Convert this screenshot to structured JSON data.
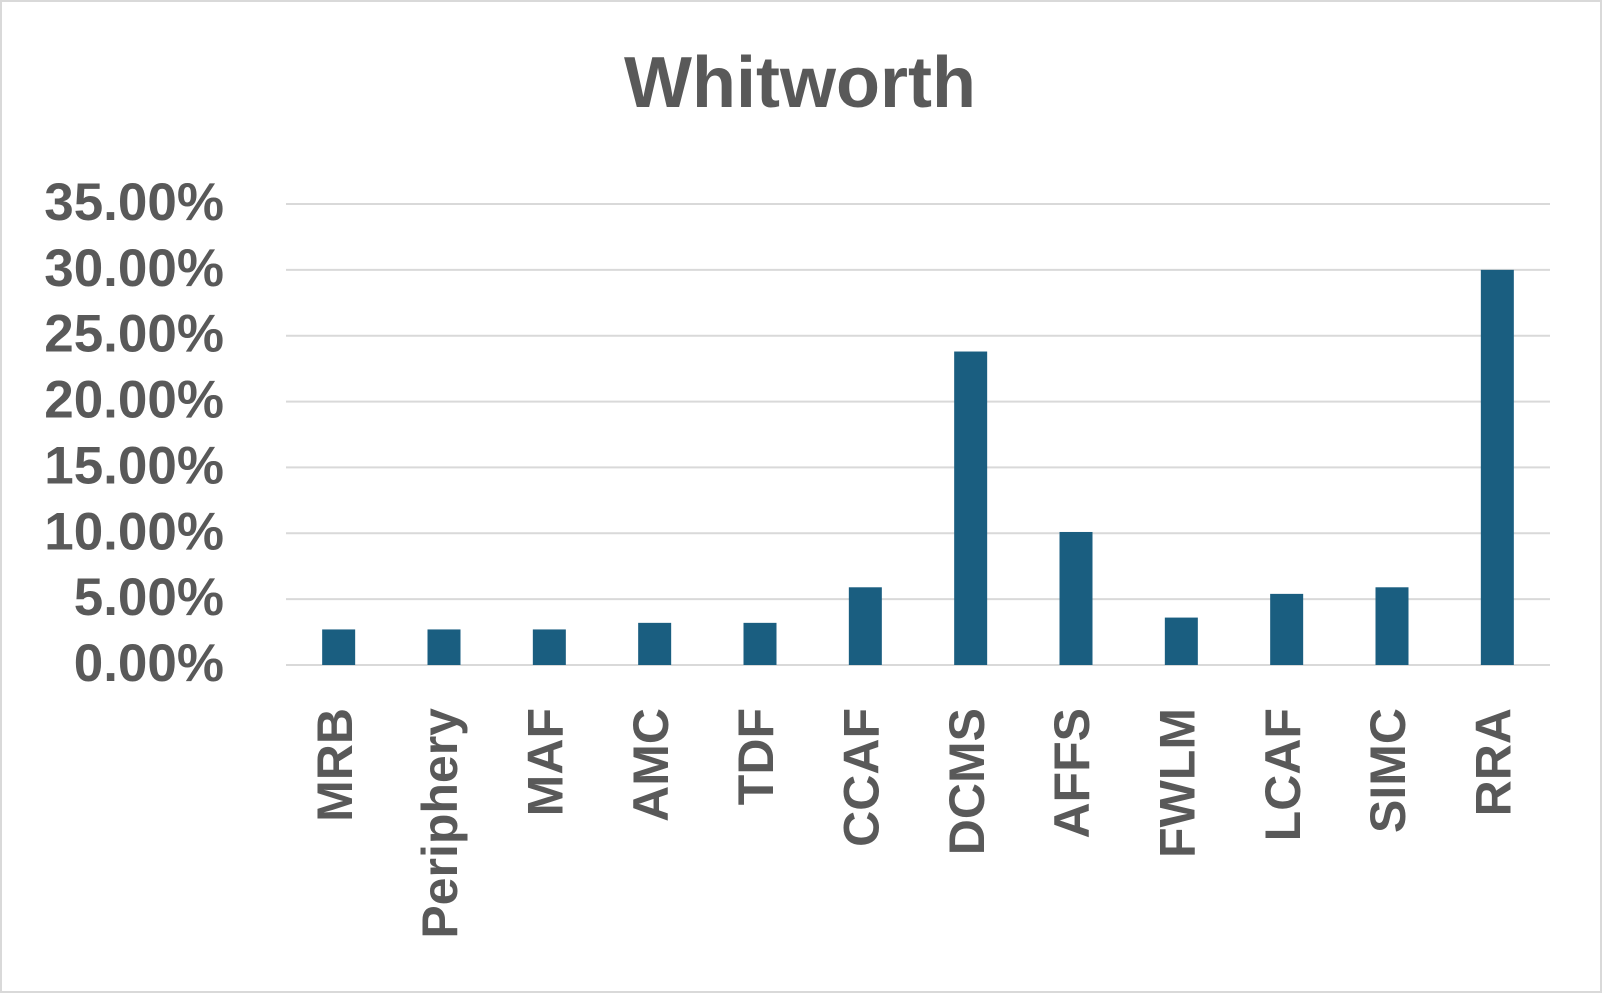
{
  "chart_data": {
    "type": "bar",
    "title": "Whitworth",
    "categories": [
      "MRB",
      "Periphery",
      "MAF",
      "AMC",
      "TDF",
      "CCAF",
      "DCMS",
      "AFFS",
      "FWLM",
      "LCAF",
      "SIMC",
      "RRA"
    ],
    "values": [
      2.7,
      2.7,
      2.7,
      3.2,
      3.2,
      5.9,
      23.8,
      10.1,
      3.6,
      5.4,
      5.9,
      30.0
    ],
    "color": "#1a5e80",
    "ylim": [
      0,
      35
    ],
    "yticks": [
      {
        "value": 0,
        "label": "0.00%"
      },
      {
        "value": 5,
        "label": "5.00%"
      },
      {
        "value": 10,
        "label": "10.00%"
      },
      {
        "value": 15,
        "label": "15.00%"
      },
      {
        "value": 20,
        "label": "20.00%"
      },
      {
        "value": 25,
        "label": "25.00%"
      },
      {
        "value": 30,
        "label": "30.00%"
      },
      {
        "value": 35,
        "label": "35.00%"
      }
    ],
    "grid": true
  }
}
